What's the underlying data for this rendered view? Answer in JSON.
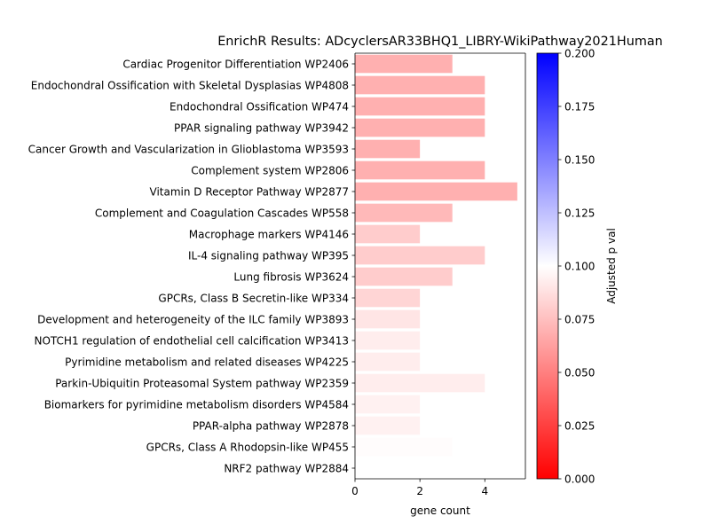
{
  "chart_data": {
    "type": "bar",
    "orientation": "horizontal",
    "title": "EnrichR Results: ADcyclersAR33BHQ1_LIBRY-WikiPathway2021Human",
    "xlabel": "gene count",
    "ylabel": "",
    "xlim": [
      0,
      5.25
    ],
    "xticks": [
      0,
      2,
      4
    ],
    "categories": [
      "Cardiac Progenitor Differentiation WP2406",
      "Endochondral Ossification with Skeletal Dysplasias WP4808",
      "Endochondral Ossification WP474",
      "PPAR signaling pathway WP3942",
      "Cancer Growth and Vascularization in Glioblastoma WP3593",
      "Complement system WP2806",
      "Vitamin D Receptor Pathway WP2877",
      "Complement and Coagulation Cascades WP558",
      "Macrophage markers WP4146",
      "IL-4 signaling pathway WP395",
      "Lung fibrosis WP3624",
      "GPCRs, Class B Secretin-like WP334",
      "Development and heterogeneity of the ILC family WP3893",
      "NOTCH1 regulation of endothelial cell calcification WP3413",
      "Pyrimidine metabolism and related diseases WP4225",
      "Parkin-Ubiquitin Proteasomal System pathway WP2359",
      "Biomarkers for pyrimidine metabolism disorders WP4584",
      "PPAR-alpha pathway WP2878",
      "GPCRs, Class A Rhodopsin-like WP455",
      "NRF2 pathway WP2884"
    ],
    "values": [
      3,
      4,
      4,
      4,
      2,
      4,
      5,
      3,
      2,
      4,
      3,
      2,
      2,
      2,
      2,
      4,
      2,
      2,
      3,
      4
    ],
    "adjusted_p_val": [
      0.044,
      0.044,
      0.044,
      0.044,
      0.044,
      0.044,
      0.044,
      0.05,
      0.064,
      0.064,
      0.064,
      0.07,
      0.081,
      0.087,
      0.087,
      0.087,
      0.09,
      0.09,
      0.098,
      0.1
    ],
    "colorbar": {
      "label": "Adjusted p val",
      "range": [
        0,
        0.2
      ],
      "ticks": [
        "0.000",
        "0.025",
        "0.050",
        "0.075",
        "0.100",
        "0.125",
        "0.150",
        "0.175",
        "0.200"
      ],
      "colormap": "bwr_r",
      "colors": {
        "low": "#ff0000",
        "mid": "#ffffff",
        "high": "#0000ff"
      }
    },
    "grid": false,
    "legend": "none"
  }
}
